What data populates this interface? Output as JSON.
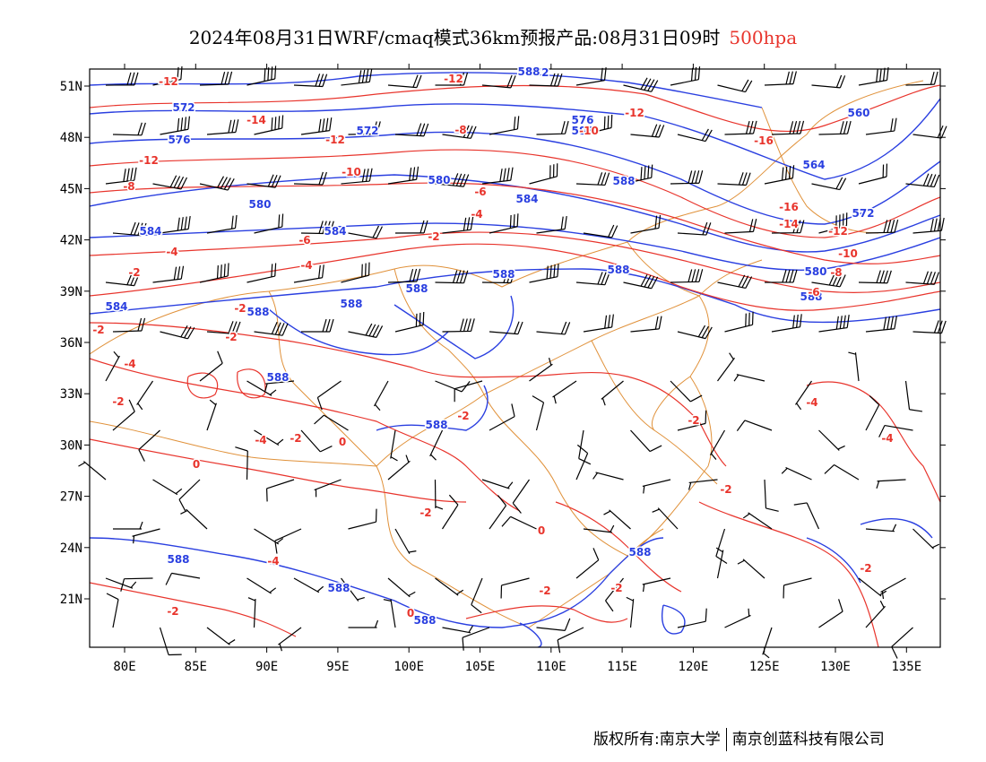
{
  "title": {
    "main": "2024年08月31日WRF/cmaq模式36km预报产品:08月31日09时",
    "level": "500hpa"
  },
  "axes": {
    "lon_labels": [
      "80E",
      "85E",
      "90E",
      "95E",
      "100E",
      "105E",
      "110E",
      "115E",
      "120E",
      "125E",
      "130E",
      "135E"
    ],
    "lat_labels": [
      "51N",
      "48N",
      "45N",
      "42N",
      "39N",
      "36N",
      "33N",
      "30N",
      "27N",
      "24N",
      "21N"
    ]
  },
  "height_contour_labels": [
    "572",
    "572",
    "576",
    "572",
    "576",
    "560",
    "580",
    "564",
    "580",
    "584",
    "572",
    "584",
    "584",
    "588",
    "588",
    "580",
    "588",
    "588",
    "584",
    "588",
    "588",
    "588",
    "588",
    "588",
    "588",
    "588",
    "588",
    "588",
    "588",
    "588"
  ],
  "temperature_contour_labels": [
    "-12",
    "-12",
    "-14",
    "-12",
    "-8",
    "-12",
    "-10",
    "-16",
    "-12",
    "-10",
    "-8",
    "-6",
    "-16",
    "-14",
    "-12",
    "-10",
    "-8",
    "-6",
    "-2",
    "-4",
    "-6",
    "-4",
    "-2",
    "-4",
    "-2",
    "-2",
    "-2",
    "-4",
    "-2",
    "-4",
    "-2",
    "0",
    "0",
    "-2",
    "-2",
    "-4",
    "-2",
    "0",
    "0",
    "-2",
    "-2",
    "-2",
    "-2",
    "-4",
    "-4",
    "-2"
  ],
  "colors": {
    "height_contour": "#2a3fe0",
    "temperature_contour": "#e8342c",
    "boundary": "#e0913a",
    "wind_barb": "#000000"
  },
  "footer": {
    "left": "版权所有:南京大学",
    "right": "南京创蓝科技有限公司"
  }
}
